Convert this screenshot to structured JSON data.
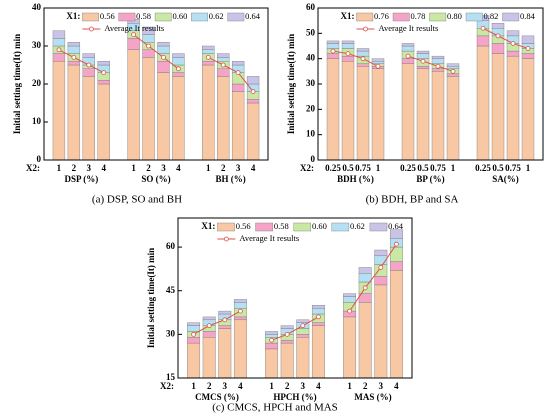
{
  "chart_data": [
    {
      "type": "bar",
      "caption": "(a) DSP, SO and BH",
      "y_label": "Initial setting time(It)  min",
      "x_label": "X2:",
      "legend_title": "X1:",
      "categories": [
        "1",
        "2",
        "3",
        "4",
        "1",
        "2",
        "3",
        "4",
        "1",
        "2",
        "3",
        "4"
      ],
      "groups": [
        "DSP (%)",
        "SO (%)",
        "BH (%)"
      ],
      "ylim": [
        0,
        40
      ],
      "yticks": [
        0,
        10,
        20,
        30,
        40
      ],
      "series": [
        {
          "name": "0.56",
          "color": "#f8c8a4",
          "values": [
            26,
            25,
            22,
            20,
            29,
            27,
            23,
            22,
            25,
            22,
            18,
            15
          ]
        },
        {
          "name": "0.58",
          "color": "#f5a3c7",
          "values": [
            2,
            1,
            2,
            1,
            3,
            2,
            3,
            1,
            1,
            2,
            2,
            1
          ]
        },
        {
          "name": "0.60",
          "color": "#c8e8a4",
          "values": [
            2,
            2,
            1,
            2,
            2,
            2,
            2,
            2,
            2,
            2,
            3,
            2
          ]
        },
        {
          "name": "0.62",
          "color": "#b5e0f3",
          "values": [
            2,
            2,
            2,
            2,
            2,
            2,
            2,
            2,
            1,
            1,
            2,
            2
          ]
        },
        {
          "name": "0.64",
          "color": "#cac3e8",
          "values": [
            2,
            1,
            1,
            1,
            1,
            2,
            1,
            1,
            1,
            1,
            1,
            2
          ]
        }
      ],
      "line": {
        "name": "Average It results",
        "color": "#e05048",
        "values": [
          29,
          27,
          25,
          23,
          33,
          30,
          27,
          24,
          27,
          25,
          23,
          18
        ]
      }
    },
    {
      "type": "bar",
      "caption": "(b) BDH, BP and SA",
      "y_label": "Initial setting time(It)  min",
      "x_label": "X2:",
      "legend_title": "X1:",
      "categories": [
        "0.25",
        "0.5",
        "0.75",
        "1",
        "0.25",
        "0.5",
        "0.75",
        "1",
        "0.25",
        "0.5",
        "0.75",
        "1"
      ],
      "groups": [
        "BDH (%)",
        "BP (%)",
        "SA(%)"
      ],
      "ylim": [
        0,
        60
      ],
      "yticks": [
        0,
        10,
        20,
        30,
        40,
        50,
        60
      ],
      "series": [
        {
          "name": "0.76",
          "color": "#f8c8a4",
          "values": [
            40,
            39,
            37,
            36,
            38,
            36,
            35,
            33,
            45,
            42,
            41,
            40
          ]
        },
        {
          "name": "0.78",
          "color": "#f5a3c7",
          "values": [
            2,
            2,
            1,
            1,
            2,
            1,
            1,
            1,
            4,
            4,
            2,
            2
          ]
        },
        {
          "name": "0.80",
          "color": "#c8e8a4",
          "values": [
            2,
            3,
            3,
            1,
            3,
            3,
            2,
            2,
            3,
            3,
            3,
            2
          ]
        },
        {
          "name": "0.82",
          "color": "#b5e0f3",
          "values": [
            2,
            2,
            2,
            1,
            2,
            2,
            2,
            1,
            3,
            3,
            3,
            2
          ]
        },
        {
          "name": "0.84",
          "color": "#cac3e8",
          "values": [
            1,
            1,
            1,
            1,
            1,
            1,
            1,
            1,
            2,
            2,
            2,
            3
          ]
        }
      ],
      "line": {
        "name": "Average It results",
        "color": "#e05048",
        "values": [
          43,
          42,
          40,
          37,
          41,
          39,
          37,
          35,
          52,
          49,
          46,
          44
        ]
      }
    },
    {
      "type": "bar",
      "caption": "(c) CMCS, HPCH and MAS",
      "y_label": "Initial setting time(It)  min",
      "x_label": "X2:",
      "legend_title": "X1:",
      "categories": [
        "1",
        "2",
        "3",
        "4",
        "1",
        "2",
        "3",
        "4",
        "1",
        "2",
        "3",
        "4"
      ],
      "groups": [
        "CMCS (%)",
        "HPCH (%)",
        "MAS (%)"
      ],
      "ylim": [
        15,
        70
      ],
      "yticks": [
        15,
        30,
        45,
        60
      ],
      "series": [
        {
          "name": "0.56",
          "color": "#f8c8a4",
          "values": [
            27,
            29,
            32,
            35,
            25,
            27,
            29,
            33,
            36,
            41,
            47,
            52
          ]
        },
        {
          "name": "0.58",
          "color": "#f5a3c7",
          "values": [
            2,
            2,
            1,
            1,
            2,
            1,
            1,
            1,
            2,
            3,
            3,
            3
          ]
        },
        {
          "name": "0.60",
          "color": "#c8e8a4",
          "values": [
            2,
            2,
            2,
            3,
            2,
            2,
            2,
            3,
            3,
            4,
            4,
            5
          ]
        },
        {
          "name": "0.62",
          "color": "#b5e0f3",
          "values": [
            2,
            2,
            2,
            2,
            1,
            2,
            2,
            2,
            2,
            3,
            3,
            3
          ]
        },
        {
          "name": "0.64",
          "color": "#cac3e8",
          "values": [
            1,
            1,
            1,
            1,
            1,
            1,
            1,
            1,
            1,
            2,
            2,
            3
          ]
        }
      ],
      "line": {
        "name": "Average It results",
        "color": "#e05048",
        "values": [
          30,
          33,
          35,
          38,
          28,
          30,
          33,
          36,
          38,
          46,
          53,
          61
        ]
      }
    }
  ]
}
